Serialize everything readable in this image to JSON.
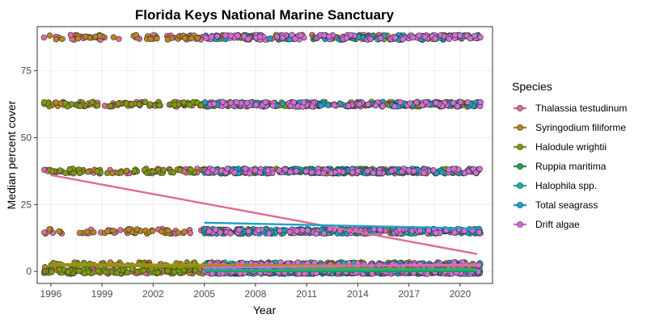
{
  "chart_data": {
    "type": "scatter",
    "title": "Florida Keys National Marine Sanctuary",
    "xlabel": "Year",
    "ylabel": "Median percent cover",
    "xlim": [
      1995.2,
      2021.9
    ],
    "ylim": [
      -4.5,
      91.5
    ],
    "x_ticks": [
      1996,
      1999,
      2002,
      2005,
      2008,
      2011,
      2014,
      2017,
      2020
    ],
    "y_ticks": [
      0,
      25,
      50,
      75
    ],
    "grid": true,
    "legend_title": "Species",
    "legend_position": "right",
    "cover_levels": [
      0,
      2.5,
      15,
      37.5,
      62.5,
      87.5
    ],
    "series": [
      {
        "name": "Thalassia testudinum",
        "color": "#e06c8c",
        "x_range": [
          1995.6,
          2021.2
        ],
        "levels": [
          0,
          15,
          37.5,
          62.5,
          87.5
        ],
        "trend": [
          [
            1996,
            36
          ],
          [
            2021,
            6.5
          ]
        ]
      },
      {
        "name": "Syringodium filiforme",
        "color": "#b88522",
        "x_range": [
          1995.6,
          2021.2
        ],
        "levels": [
          0,
          2.5,
          15,
          37.5,
          62.5,
          87.5
        ],
        "trend": [
          [
            1996,
            2.8
          ],
          [
            2021,
            2.0
          ]
        ]
      },
      {
        "name": "Halodule wrightii",
        "color": "#7f9a0b",
        "x_range": [
          1995.6,
          2021.2
        ],
        "levels": [
          0,
          2.5,
          37.5,
          62.5
        ],
        "trend": [
          [
            1996,
            2.2
          ],
          [
            2021,
            0.8
          ]
        ]
      },
      {
        "name": "Ruppia maritima",
        "color": "#1ea04a",
        "x_range": [
          2005,
          2021.2
        ],
        "levels": [
          0
        ],
        "trend": [
          [
            2005,
            0.1
          ],
          [
            2021,
            0.1
          ]
        ]
      },
      {
        "name": "Halophila spp.",
        "color": "#18b0a6",
        "x_range": [
          2005,
          2021.2
        ],
        "levels": [
          0,
          2.5,
          15,
          37.5
        ],
        "trend": [
          [
            2005,
            0.5
          ],
          [
            2021,
            0.7
          ]
        ]
      },
      {
        "name": "Total seagrass",
        "color": "#1aa0cc",
        "x_range": [
          2005,
          2021.2
        ],
        "levels": [
          0,
          15,
          37.5,
          62.5,
          87.5
        ],
        "trend": [
          [
            2005,
            18.2
          ],
          [
            2021,
            16.0
          ]
        ]
      },
      {
        "name": "Drift algae",
        "color": "#d46cd6",
        "x_range": [
          2005,
          2021.2
        ],
        "levels": [
          0,
          2.5,
          15,
          37.5,
          62.5,
          87.5
        ],
        "trend": [
          [
            2005,
            1.4
          ],
          [
            2021,
            2.6
          ]
        ]
      }
    ]
  }
}
